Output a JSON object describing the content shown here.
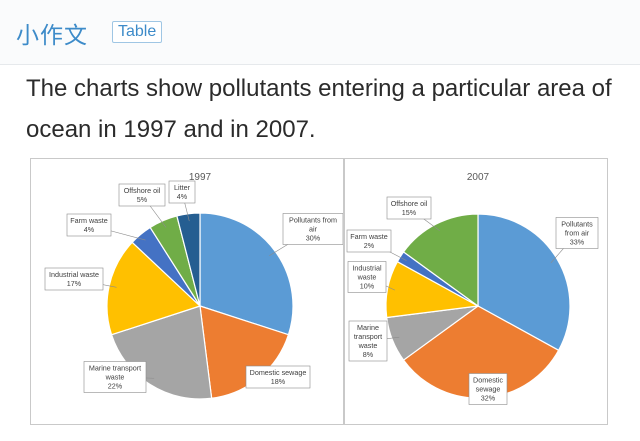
{
  "header": {
    "brand": "小作文",
    "tag": "Table"
  },
  "question": {
    "text": "The charts show pollutants entering a particular area of ocean in 1997 and in 2007."
  },
  "colors": {
    "Pollutants from air": "#5b9bd5",
    "Domestic sewage": "#ed7d31",
    "Marine transport waste": "#a5a5a5",
    "Industrial waste": "#ffc000",
    "Farm waste": "#4472c4",
    "Offshore oil": "#70ad47",
    "Litter": "#255e91"
  },
  "chart_data": [
    {
      "type": "pie",
      "title": "1997",
      "labels": [
        [
          "Pollutants from",
          "air",
          "30%"
        ],
        [
          "Domestic sewage",
          "18%"
        ],
        [
          "Marine transport",
          "waste",
          "22%"
        ],
        [
          "Industrial waste",
          "17%"
        ],
        [
          "Farm waste",
          "4%"
        ],
        [
          "Offshore oil",
          "5%"
        ],
        [
          "Litter",
          "4%"
        ]
      ],
      "slices": [
        {
          "name": "Pollutants from air",
          "value": 30
        },
        {
          "name": "Domestic sewage",
          "value": 18
        },
        {
          "name": "Marine transport waste",
          "value": 22
        },
        {
          "name": "Industrial waste",
          "value": 17
        },
        {
          "name": "Farm waste",
          "value": 4
        },
        {
          "name": "Offshore oil",
          "value": 5
        },
        {
          "name": "Litter",
          "value": 4
        }
      ]
    },
    {
      "type": "pie",
      "title": "2007",
      "labels": [
        [
          "Pollutants",
          "from air",
          "33%"
        ],
        [
          "Domestic",
          "sewage",
          "32%"
        ],
        [
          "Marine",
          "transport",
          "waste",
          "8%"
        ],
        [
          "Industrial",
          "waste",
          "10%"
        ],
        [
          "Farm waste",
          "2%"
        ],
        [
          "Offshore oil",
          "15%"
        ]
      ],
      "slices": [
        {
          "name": "Pollutants from air",
          "value": 33
        },
        {
          "name": "Domestic sewage",
          "value": 32
        },
        {
          "name": "Marine transport waste",
          "value": 8
        },
        {
          "name": "Industrial waste",
          "value": 10
        },
        {
          "name": "Farm waste",
          "value": 2
        },
        {
          "name": "Offshore oil",
          "value": 15
        }
      ]
    }
  ]
}
